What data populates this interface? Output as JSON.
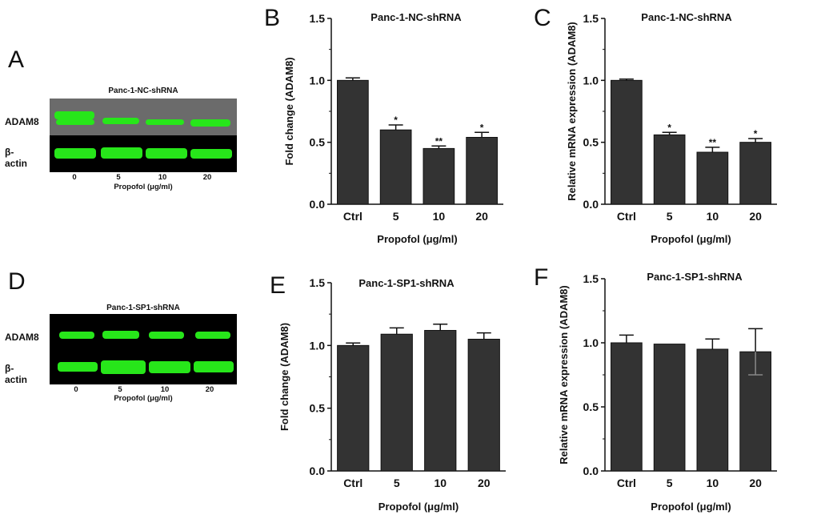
{
  "panels": [
    {
      "letter": "A"
    },
    {
      "letter": "B"
    },
    {
      "letter": "C"
    },
    {
      "letter": "D"
    },
    {
      "letter": "E"
    },
    {
      "letter": "F"
    }
  ],
  "blots": [
    {
      "title": "Panc-1-NC-shRNA",
      "row_labels": [
        "ADAM8",
        "β-actin"
      ],
      "lanes": [
        "0",
        "5",
        "10",
        "20"
      ],
      "xlabel": "Propofol (μg/ml)"
    },
    {
      "title": "Panc-1-SP1-shRNA",
      "row_labels": [
        "ADAM8",
        "β-actin"
      ],
      "lanes": [
        "0",
        "5",
        "10",
        "20"
      ],
      "xlabel": "Propofol (μg/ml)"
    }
  ],
  "colors": {
    "bar": "#333333",
    "band": "#27e61a",
    "blot_bg_top": "#6b6b6b",
    "blot_bg": "#000000"
  },
  "chart_data": [
    {
      "type": "bar",
      "title": "Panc-1-NC-shRNA",
      "xlabel": "Propofol (μg/ml)",
      "ylabel": "Fold change (ADAM8)",
      "categories": [
        "Ctrl",
        "5",
        "10",
        "20"
      ],
      "values": [
        1.0,
        0.6,
        0.45,
        0.54
      ],
      "errors": [
        0.02,
        0.04,
        0.02,
        0.04
      ],
      "annotations": [
        "",
        "*",
        "**",
        "*"
      ],
      "ylim": [
        0,
        1.5
      ],
      "yticks": [
        "0.0",
        "0.5",
        "1.0",
        "1.5"
      ]
    },
    {
      "type": "bar",
      "title": "Panc-1-NC-shRNA",
      "xlabel": "Propofol (μg/ml)",
      "ylabel": "Relative mRNA expression (ADAM8)",
      "categories": [
        "Ctrl",
        "5",
        "10",
        "20"
      ],
      "values": [
        1.0,
        0.56,
        0.42,
        0.5
      ],
      "errors": [
        0.01,
        0.02,
        0.04,
        0.03
      ],
      "annotations": [
        "",
        "*",
        "**",
        "*"
      ],
      "ylim": [
        0,
        1.5
      ],
      "yticks": [
        "0.0",
        "0.5",
        "1.0",
        "1.5"
      ]
    },
    {
      "type": "bar",
      "title": "Panc-1-SP1-shRNA",
      "xlabel": "Propofol (μg/ml)",
      "ylabel": "Fold change (ADAM8)",
      "categories": [
        "Ctrl",
        "5",
        "10",
        "20"
      ],
      "values": [
        1.0,
        1.09,
        1.12,
        1.05
      ],
      "errors": [
        0.02,
        0.05,
        0.05,
        0.05
      ],
      "annotations": [
        "",
        "",
        "",
        ""
      ],
      "ylim": [
        0,
        1.5
      ],
      "yticks": [
        "0.0",
        "0.5",
        "1.0",
        "1.5"
      ]
    },
    {
      "type": "bar",
      "title": "Panc-1-SP1-shRNA",
      "xlabel": "Propofol (μg/ml)",
      "ylabel": "Relative mRNA expression (ADAM8)",
      "categories": [
        "Ctrl",
        "5",
        "10",
        "20"
      ],
      "values": [
        1.0,
        0.99,
        0.95,
        0.93
      ],
      "errors": [
        0.06,
        0.0,
        0.08,
        0.18
      ],
      "annotations": [
        "",
        "",
        "",
        ""
      ],
      "ylim": [
        0,
        1.5
      ],
      "yticks": [
        "0.0",
        "0.5",
        "1.0",
        "1.5"
      ]
    }
  ]
}
